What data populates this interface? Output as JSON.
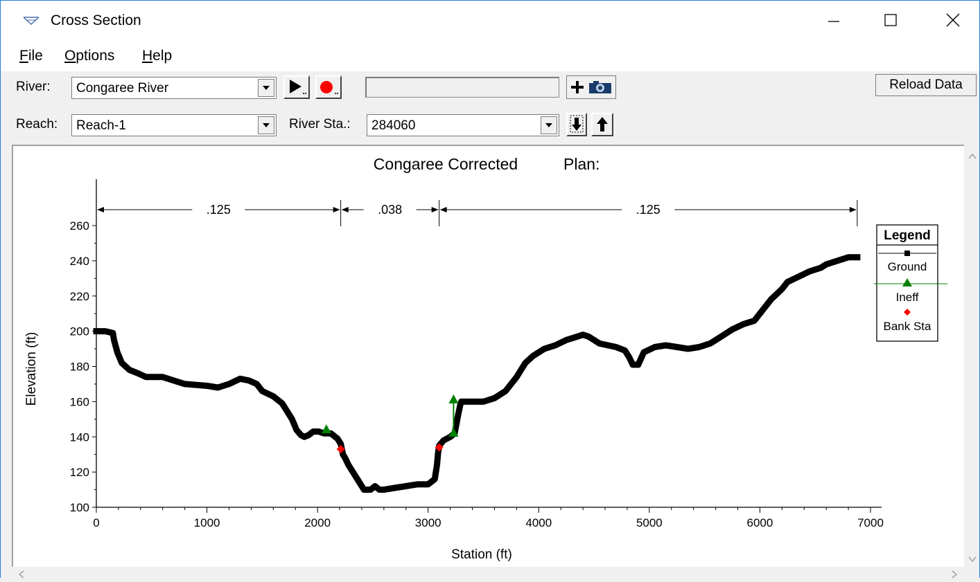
{
  "window": {
    "title": "Cross Section",
    "colors": {
      "accent": "#2b79d8"
    }
  },
  "menu": {
    "items": [
      {
        "label": "File",
        "mnemonic": "F",
        "rest": "ile"
      },
      {
        "label": "Options",
        "mnemonic": "O",
        "rest": "ptions"
      },
      {
        "label": "Help",
        "mnemonic": "H",
        "rest": "elp"
      }
    ]
  },
  "toolbar": {
    "river_label": "River:",
    "river_value": "Congaree River",
    "reach_label": "Reach:",
    "reach_value": "Reach-1",
    "river_sta_label": "River Sta.:",
    "river_sta_value": "284060",
    "status_text": "",
    "reload_label": "Reload Data",
    "icons": [
      "play-icon",
      "record-icon",
      "add-icon",
      "camera-icon",
      "down-arrow-icon",
      "up-arrow-icon"
    ]
  },
  "chart_data": {
    "type": "line",
    "title": "Congaree Corrected",
    "plan_label": "Plan:",
    "xlabel": "Station (ft)",
    "ylabel": "Elevation (ft)",
    "xlim": [
      0,
      7000
    ],
    "ylim": [
      100,
      270
    ],
    "xticks": [
      0,
      1000,
      2000,
      3000,
      4000,
      5000,
      6000,
      7000
    ],
    "yticks": [
      100,
      120,
      140,
      160,
      180,
      200,
      220,
      240,
      260
    ],
    "mannings": [
      {
        "from": 0,
        "to": 2210,
        "value": ".125"
      },
      {
        "from": 2210,
        "to": 3100,
        "value": ".038"
      },
      {
        "from": 3100,
        "to": 6880,
        "value": ".125"
      }
    ],
    "legend": {
      "title": "Legend",
      "placement": "right",
      "entries": [
        "Ground",
        "Ineff",
        "Bank Sta"
      ]
    },
    "colors": {
      "ground": "#000000",
      "ineff": "#008000",
      "bank": "#ff0000"
    },
    "series": [
      {
        "name": "Ground",
        "points": [
          [
            0,
            200
          ],
          [
            80,
            200
          ],
          [
            150,
            199
          ],
          [
            160,
            195
          ],
          [
            190,
            188
          ],
          [
            230,
            182
          ],
          [
            300,
            178
          ],
          [
            380,
            176
          ],
          [
            450,
            174
          ],
          [
            600,
            174
          ],
          [
            700,
            172
          ],
          [
            800,
            170
          ],
          [
            1000,
            169
          ],
          [
            1100,
            168
          ],
          [
            1200,
            170
          ],
          [
            1300,
            173
          ],
          [
            1380,
            172
          ],
          [
            1450,
            170
          ],
          [
            1500,
            166
          ],
          [
            1600,
            163
          ],
          [
            1680,
            159
          ],
          [
            1720,
            155
          ],
          [
            1770,
            150
          ],
          [
            1810,
            144
          ],
          [
            1850,
            141
          ],
          [
            1880,
            140
          ],
          [
            1920,
            141
          ],
          [
            1960,
            143
          ],
          [
            2010,
            143
          ],
          [
            2060,
            142
          ],
          [
            2120,
            142
          ],
          [
            2180,
            139
          ],
          [
            2210,
            136
          ],
          [
            2230,
            130
          ],
          [
            2250,
            128
          ],
          [
            2280,
            124
          ],
          [
            2320,
            120
          ],
          [
            2360,
            116
          ],
          [
            2400,
            112
          ],
          [
            2420,
            110
          ],
          [
            2480,
            110
          ],
          [
            2520,
            112
          ],
          [
            2560,
            110
          ],
          [
            2600,
            110
          ],
          [
            2700,
            111
          ],
          [
            2800,
            112
          ],
          [
            2900,
            113
          ],
          [
            3000,
            113
          ],
          [
            3060,
            116
          ],
          [
            3080,
            124
          ],
          [
            3090,
            131
          ],
          [
            3100,
            135
          ],
          [
            3140,
            138
          ],
          [
            3200,
            140
          ],
          [
            3240,
            142
          ],
          [
            3270,
            152
          ],
          [
            3290,
            158
          ],
          [
            3300,
            160
          ],
          [
            3400,
            160
          ],
          [
            3500,
            160
          ],
          [
            3600,
            162
          ],
          [
            3700,
            166
          ],
          [
            3800,
            174
          ],
          [
            3880,
            182
          ],
          [
            3950,
            186
          ],
          [
            4050,
            190
          ],
          [
            4150,
            192
          ],
          [
            4250,
            195
          ],
          [
            4350,
            197
          ],
          [
            4400,
            198
          ],
          [
            4450,
            197
          ],
          [
            4500,
            195
          ],
          [
            4550,
            193
          ],
          [
            4700,
            191
          ],
          [
            4780,
            189
          ],
          [
            4820,
            185
          ],
          [
            4850,
            181
          ],
          [
            4900,
            181
          ],
          [
            4950,
            188
          ],
          [
            5050,
            191
          ],
          [
            5150,
            192
          ],
          [
            5250,
            191
          ],
          [
            5350,
            190
          ],
          [
            5450,
            191
          ],
          [
            5550,
            193
          ],
          [
            5650,
            197
          ],
          [
            5750,
            201
          ],
          [
            5850,
            204
          ],
          [
            5950,
            206
          ],
          [
            6000,
            210
          ],
          [
            6050,
            214
          ],
          [
            6100,
            218
          ],
          [
            6200,
            224
          ],
          [
            6250,
            228
          ],
          [
            6350,
            231
          ],
          [
            6450,
            234
          ],
          [
            6550,
            236
          ],
          [
            6600,
            238
          ],
          [
            6700,
            240
          ],
          [
            6800,
            242
          ],
          [
            6880,
            242
          ]
        ]
      },
      {
        "name": "Ineff",
        "points": [
          [
            2080,
            144
          ],
          [
            3230,
            142
          ],
          [
            3230,
            161
          ]
        ]
      },
      {
        "name": "Bank Sta",
        "points": [
          [
            2210,
            133
          ],
          [
            3100,
            134
          ]
        ]
      }
    ]
  }
}
